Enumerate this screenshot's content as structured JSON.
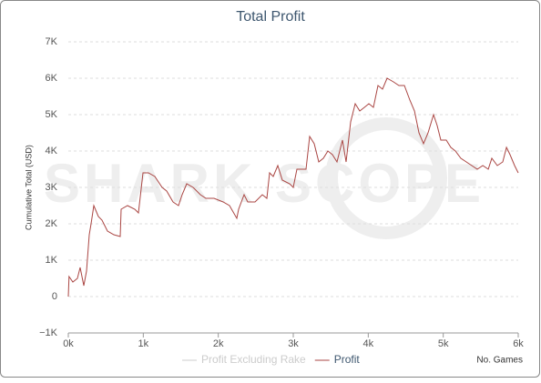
{
  "chart_data": {
    "type": "line",
    "title": "Total Profit",
    "watermark": "SHARK SCOPE",
    "xlabel": "No. Games",
    "ylabel": "Cumulative Total (USD)",
    "xlim": [
      0,
      6000
    ],
    "ylim": [
      -1000,
      7000
    ],
    "xticks": [
      {
        "value": 0,
        "label": "0k"
      },
      {
        "value": 1000,
        "label": "1k"
      },
      {
        "value": 2000,
        "label": "2k"
      },
      {
        "value": 3000,
        "label": "3k"
      },
      {
        "value": 4000,
        "label": "4k"
      },
      {
        "value": 5000,
        "label": "5k"
      },
      {
        "value": 6000,
        "label": "6k"
      }
    ],
    "yticks": [
      {
        "value": -1000,
        "label": "−1K"
      },
      0,
      {
        "value": 1000,
        "label": "1K"
      },
      {
        "value": 2000,
        "label": "2K"
      },
      {
        "value": 3000,
        "label": "3K"
      },
      {
        "value": 4000,
        "label": "4K"
      },
      {
        "value": 5000,
        "label": "5K"
      },
      {
        "value": 6000,
        "label": "6K"
      },
      {
        "value": 7000,
        "label": "7K"
      }
    ],
    "grid": true,
    "legend": "bottom",
    "x": [
      0,
      10,
      61,
      121,
      158,
      206,
      243,
      279,
      304,
      340,
      401,
      449,
      522,
      607,
      692,
      704,
      790,
      887,
      935,
      996,
      1069,
      1154,
      1251,
      1312,
      1397,
      1470,
      1518,
      1579,
      1664,
      1761,
      1834,
      1943,
      2065,
      2150,
      2247,
      2271,
      2344,
      2393,
      2490,
      2587,
      2648,
      2684,
      2733,
      2794,
      2854,
      2952,
      3000,
      3049,
      3122,
      3170,
      3219,
      3279,
      3340,
      3401,
      3462,
      3522,
      3583,
      3656,
      3705,
      3765,
      3826,
      3887,
      3948,
      4008,
      4069,
      4130,
      4190,
      4251,
      4336,
      4409,
      4482,
      4555,
      4616,
      4676,
      4737,
      4798,
      4871,
      4919,
      4968,
      5041,
      5101,
      5162,
      5235,
      5308,
      5381,
      5454,
      5527,
      5600,
      5648,
      5721,
      5794,
      5843,
      5891,
      5952,
      6000
    ],
    "series": [
      {
        "name": "Profit Excluding Rake",
        "color": "#cccccc",
        "visible": false,
        "values": [
          null,
          null,
          null,
          null,
          null,
          null,
          null,
          null,
          null,
          null,
          null,
          null,
          null,
          null,
          null,
          null,
          null,
          null,
          null,
          null,
          null,
          null,
          null,
          null,
          null,
          null,
          null,
          null,
          null,
          null,
          null,
          null,
          null,
          null,
          null,
          null,
          null,
          null,
          null,
          null,
          null,
          null,
          null,
          null,
          null,
          null,
          null,
          null,
          null,
          null,
          null,
          null,
          null,
          null,
          null,
          null,
          null,
          null,
          null,
          null,
          null,
          null,
          null,
          null,
          null,
          null,
          null,
          null,
          null,
          null,
          null,
          null,
          null,
          null,
          null,
          null,
          null,
          null,
          null,
          null,
          null,
          null,
          null,
          null,
          null,
          null,
          null,
          null,
          null,
          null,
          null,
          null,
          null,
          null,
          null
        ]
      },
      {
        "name": "Profit",
        "color": "#aa4643",
        "visible": true,
        "values": [
          0,
          550,
          400,
          500,
          800,
          300,
          700,
          1700,
          2000,
          2500,
          2200,
          2100,
          1800,
          1700,
          1650,
          2400,
          2500,
          2400,
          2300,
          3400,
          3400,
          3300,
          3000,
          2900,
          2600,
          2500,
          2800,
          3100,
          3000,
          2800,
          2700,
          2700,
          2600,
          2500,
          2150,
          2400,
          2800,
          2600,
          2600,
          2800,
          2700,
          3400,
          3300,
          3600,
          3200,
          3100,
          3000,
          3500,
          3500,
          3500,
          4400,
          4200,
          3700,
          3800,
          4000,
          3900,
          3700,
          4300,
          3700,
          4800,
          5300,
          5100,
          5200,
          5300,
          5200,
          5800,
          5700,
          6000,
          5900,
          5800,
          5800,
          5400,
          5100,
          4500,
          4200,
          4500,
          5000,
          4700,
          4300,
          4300,
          4100,
          4000,
          3800,
          3700,
          3600,
          3500,
          3600,
          3500,
          3800,
          3600,
          3700,
          4100,
          3900,
          3600,
          3400
        ]
      }
    ]
  }
}
